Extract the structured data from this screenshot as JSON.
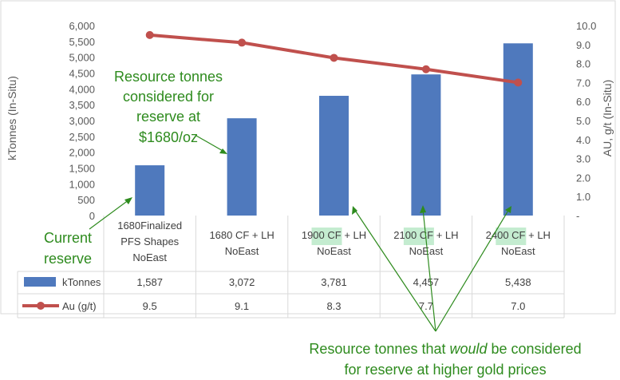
{
  "colors": {
    "bar": "#4f79bd",
    "line": "#c0504d",
    "annotation": "#2e8b1e",
    "highlight": "#c4ecd0",
    "grid": "#d9d9d9"
  },
  "chart_data": {
    "type": "bar",
    "categories": [
      [
        "1680Finalized",
        "PFS Shapes",
        "NoEast"
      ],
      [
        "1680 CF + LH",
        "NoEast"
      ],
      [
        "1900 CF + LH",
        "NoEast"
      ],
      [
        "2100 CF + LH",
        "NoEast"
      ],
      [
        "2400 CF + LH",
        "NoEast"
      ]
    ],
    "series": [
      {
        "name": "kTonnes",
        "type": "bar",
        "axis": "left",
        "values": [
          1587,
          3072,
          3781,
          4457,
          5438
        ],
        "labels": [
          "1,587",
          "3,072",
          "3,781",
          "4,457",
          "5,438"
        ]
      },
      {
        "name": "Au (g/t)",
        "type": "line",
        "axis": "right",
        "values": [
          9.5,
          9.1,
          8.3,
          7.7,
          7.0
        ],
        "labels": [
          "9.5",
          "9.1",
          "8.3",
          "7.7",
          "7.0"
        ]
      }
    ],
    "y_left": {
      "label": "kTonnes (In-Situ)",
      "range": [
        0,
        6000
      ],
      "ticks": [
        "0",
        "500",
        "1,000",
        "1,500",
        "2,000",
        "2,500",
        "3,000",
        "3,500",
        "4,000",
        "4,500",
        "5,000",
        "5,500",
        "6,000"
      ]
    },
    "y_right": {
      "label": "AU, g/t (In-Situ)",
      "range": [
        0,
        10
      ],
      "ticks": [
        "-",
        "1.0",
        "2.0",
        "3.0",
        "4.0",
        "5.0",
        "6.0",
        "7.0",
        "8.0",
        "9.0",
        "10.0"
      ]
    },
    "data_table": true,
    "grid": false
  },
  "annotations": {
    "current_reserve": [
      "Current",
      "reserve"
    ],
    "resource_1680": [
      "Resource tonnes",
      "considered for",
      "reserve at",
      "$1680/oz"
    ],
    "higher_prices": {
      "line1_before": "Resource tonnes that ",
      "line1_italic": "would",
      "line1_after": " be considered",
      "line2": "for reserve at higher gold prices"
    }
  }
}
